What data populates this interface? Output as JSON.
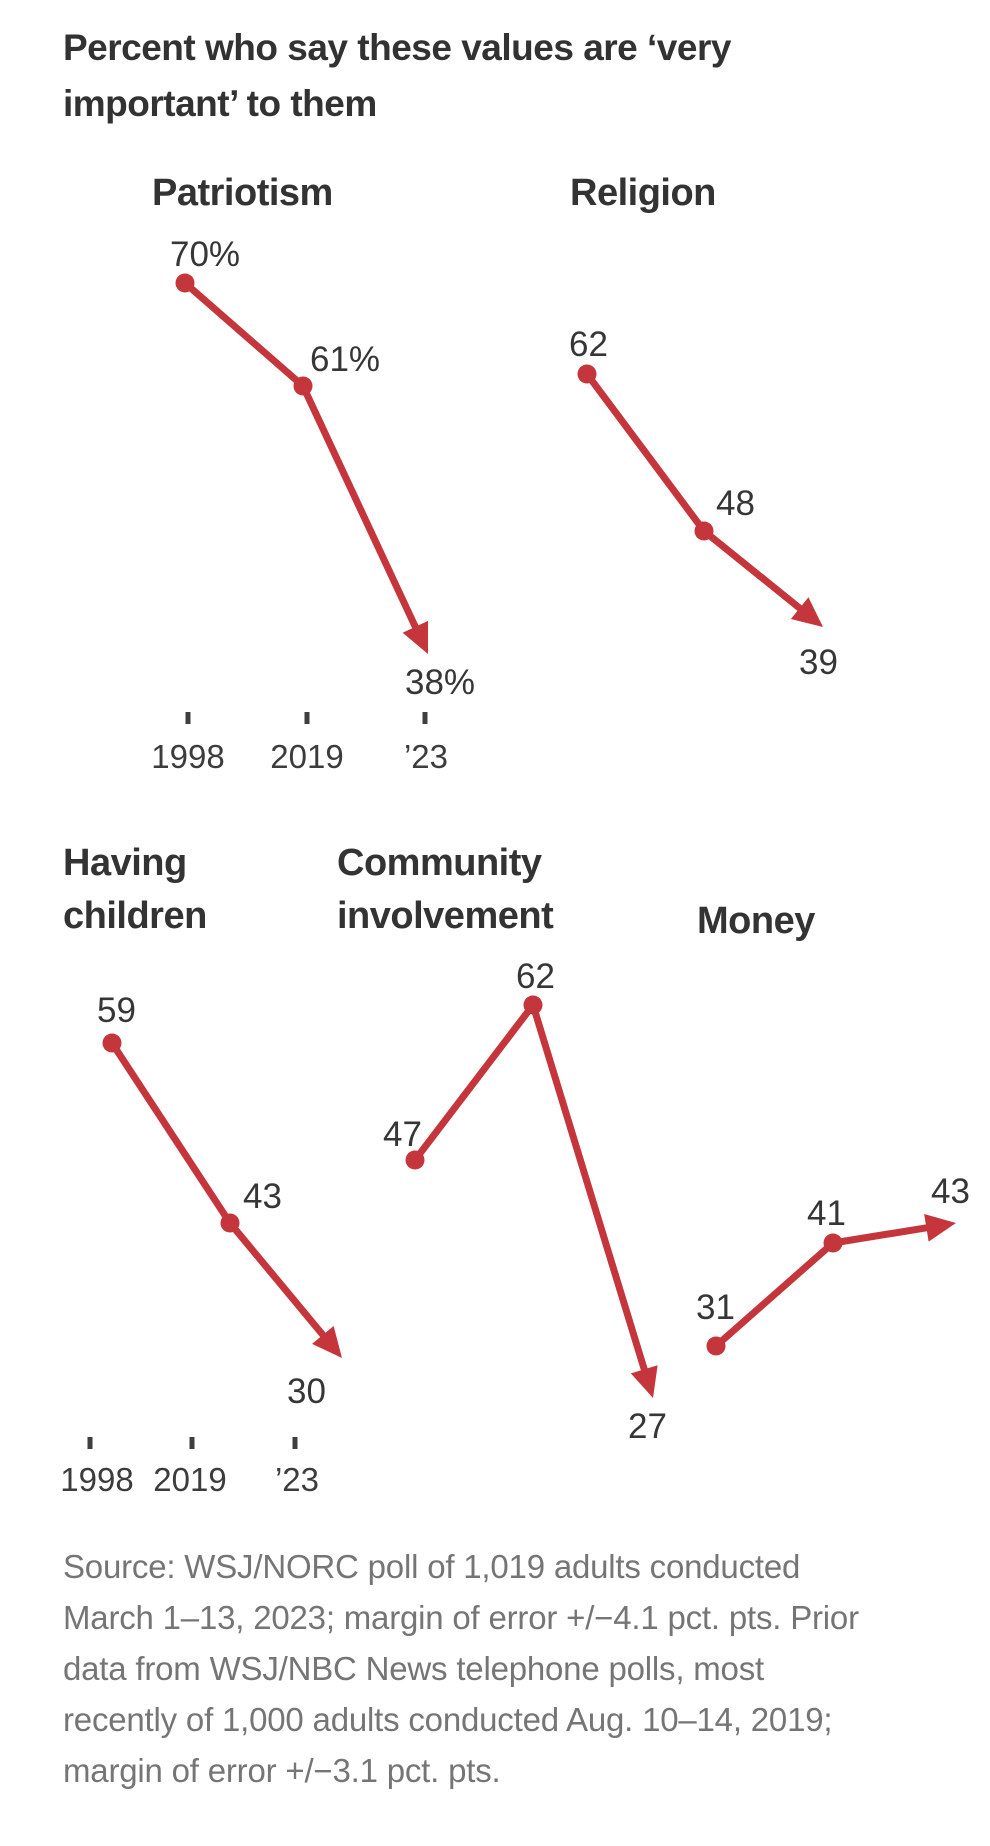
{
  "page": {
    "title": "Percent who say these values are ‘very important’ to them",
    "title_lines": [
      "Percent who say these values are ‘very",
      "important’ to them"
    ]
  },
  "chart_data": {
    "type": "line",
    "unit": "percent",
    "accent_color": "#c4363c",
    "categories": [
      "1998",
      "2019",
      "’23"
    ],
    "legend": "none",
    "grid": false,
    "charts": [
      {
        "title": "Patriotism",
        "title_lines": [
          "Patriotism"
        ],
        "values": [
          70,
          61,
          38
        ],
        "labels": [
          "70%",
          "61%",
          "38%"
        ],
        "show_axis": true
      },
      {
        "title": "Religion",
        "title_lines": [
          "Religion"
        ],
        "values": [
          62,
          48,
          39
        ],
        "labels": [
          "62",
          "48",
          "39"
        ],
        "show_axis": false
      },
      {
        "title": "Having children",
        "title_lines": [
          "Having",
          "children"
        ],
        "values": [
          59,
          43,
          30
        ],
        "labels": [
          "59",
          "43",
          "30"
        ],
        "show_axis": true
      },
      {
        "title": "Community involvement",
        "title_lines": [
          "Community",
          "involvement"
        ],
        "values": [
          47,
          62,
          27
        ],
        "labels": [
          "47",
          "62",
          "27"
        ],
        "show_axis": false
      },
      {
        "title": "Money",
        "title_lines": [
          "Money"
        ],
        "values": [
          31,
          41,
          43
        ],
        "labels": [
          "31",
          "41",
          "43"
        ],
        "show_axis": false
      }
    ]
  },
  "source": {
    "lines": [
      "Source: WSJ/NORC poll of 1,019 adults conducted",
      "March 1–13, 2023; margin of error +/−4.1 pct. pts. Prior",
      "data from WSJ/NBC News telephone polls, most",
      "recently of 1,000 adults conducted Aug. 10–14, 2019;",
      "margin of error +/−3.1 pct. pts."
    ]
  }
}
